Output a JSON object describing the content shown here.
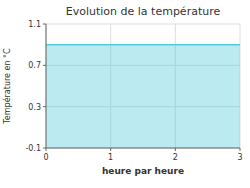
{
  "chart_data": {
    "type": "area",
    "title": "Evolution de la température",
    "xlabel": "heure par heure",
    "ylabel": "Température en °C",
    "x": [
      0,
      3
    ],
    "values": [
      0.9,
      0.9
    ],
    "color": "#55ccdd",
    "xlim": [
      0,
      3
    ],
    "ylim": [
      -0.1,
      1.1
    ],
    "xticks": [
      0,
      1,
      2,
      3
    ],
    "yticks": [
      -0.1,
      0.3,
      0.7,
      1.1
    ],
    "grid": true
  }
}
